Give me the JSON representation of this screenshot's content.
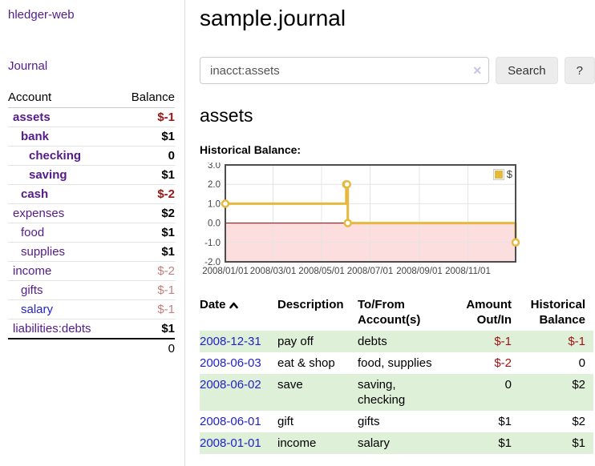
{
  "sidebar": {
    "brand": "hledger-web",
    "journal_link": "Journal",
    "accounts_table": {
      "headers": {
        "account": "Account",
        "balance": "Balance"
      },
      "rows": [
        {
          "name": "assets",
          "balance": "$-1",
          "indent": 0,
          "bold": true,
          "link_class": "visited",
          "balance_class": "neg-strong"
        },
        {
          "name": "bank",
          "balance": "$1",
          "indent": 1,
          "bold": true,
          "link_class": "visited",
          "balance_class": "pos"
        },
        {
          "name": "checking",
          "balance": "0",
          "indent": 2,
          "bold": true,
          "link_class": "visited",
          "balance_class": "pos"
        },
        {
          "name": "saving",
          "balance": "$1",
          "indent": 2,
          "bold": true,
          "link_class": "visited",
          "balance_class": "pos"
        },
        {
          "name": "cash",
          "balance": "$-2",
          "indent": 1,
          "bold": true,
          "link_class": "visited",
          "balance_class": "neg-strong"
        },
        {
          "name": "expenses",
          "balance": "$2",
          "indent": 0,
          "bold": false,
          "link_class": "visited",
          "balance_class": "pos"
        },
        {
          "name": "food",
          "balance": "$1",
          "indent": 1,
          "bold": false,
          "link_class": "visited",
          "balance_class": "pos"
        },
        {
          "name": "supplies",
          "balance": "$1",
          "indent": 1,
          "bold": false,
          "link_class": "visited",
          "balance_class": "pos"
        },
        {
          "name": "income",
          "balance": "$-2",
          "indent": 0,
          "bold": false,
          "link_class": "visited",
          "balance_class": "neg-soft"
        },
        {
          "name": "gifts",
          "balance": "$-1",
          "indent": 1,
          "bold": false,
          "link_class": "visited",
          "balance_class": "neg-soft"
        },
        {
          "name": "salary",
          "balance": "$-1",
          "indent": 1,
          "bold": false,
          "link_class": "unvisited",
          "balance_class": "neg-soft"
        },
        {
          "name": "liabilities:debts",
          "balance": "$1",
          "indent": 0,
          "bold": false,
          "link_class": "visited",
          "balance_class": "pos"
        }
      ],
      "total": "0"
    }
  },
  "header": {
    "title": "sample.journal"
  },
  "search": {
    "value": "inacct:assets",
    "clear_glyph": "✕",
    "button_label": "Search",
    "help_label": "?"
  },
  "account_page": {
    "title": "assets",
    "chart_heading": "Historical Balance:"
  },
  "chart_data": {
    "type": "line",
    "step": true,
    "title": "Historical Balance",
    "series": [
      {
        "name": "$",
        "points": [
          [
            "2008-01-01",
            1
          ],
          [
            "2008-06-01",
            2
          ],
          [
            "2008-06-02",
            2
          ],
          [
            "2008-06-03",
            0
          ],
          [
            "2008-12-31",
            -1
          ]
        ]
      }
    ],
    "xrange": [
      "2008-01-01",
      "2008-12-31"
    ],
    "ylim": [
      -2,
      3
    ],
    "yticks": [
      3,
      2,
      1,
      0,
      -1,
      -2
    ],
    "xticks": [
      "2008/01/01",
      "2008/03/01",
      "2008/05/01",
      "2008/07/01",
      "2008/09/01",
      "2008/11/01"
    ],
    "legend": {
      "label": "$",
      "position": "top-right"
    },
    "grid": true,
    "colors": {
      "line": "#e6b93c",
      "marker_fill": "#ffffff",
      "below_zero_fill": "#fcdede",
      "zero_line": "#8b0000",
      "grid": "#e4e4e4",
      "border": "#4d4d4d"
    }
  },
  "register": {
    "columns": [
      "Date",
      "Description",
      "To/From Account(s)",
      "Amount Out/In",
      "Historical Balance"
    ],
    "sort_icon": "caret-up",
    "rows": [
      {
        "date": "2008-12-31",
        "description": "pay off",
        "accounts": "debts",
        "amount": "$-1",
        "amount_negative": true,
        "balance": "$-1",
        "balance_negative": true
      },
      {
        "date": "2008-06-03",
        "description": "eat & shop",
        "accounts": "food, supplies",
        "amount": "$-2",
        "amount_negative": true,
        "balance": "0",
        "balance_negative": false
      },
      {
        "date": "2008-06-02",
        "description": "save",
        "accounts": "saving, checking",
        "amount": "0",
        "amount_negative": false,
        "balance": "$2",
        "balance_negative": false
      },
      {
        "date": "2008-06-01",
        "description": "gift",
        "accounts": "gifts",
        "amount": "$1",
        "amount_negative": false,
        "balance": "$2",
        "balance_negative": false
      },
      {
        "date": "2008-01-01",
        "description": "income",
        "accounts": "salary",
        "amount": "$1",
        "amount_negative": false,
        "balance": "$1",
        "balance_negative": false
      }
    ]
  }
}
